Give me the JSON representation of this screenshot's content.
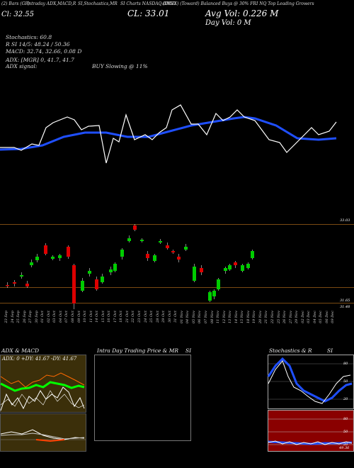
{
  "header": {
    "top_texts": [
      "(2) Bars (GF) ",
      "Intraday ADX,MACD,R",
      "SI,Stochastics,MR",
      "SI Charts NASDAQ:DMRI",
      "(DRVX) (Toward) Balanced Buys @ 30% FRI NQ Top Leading Growers"
    ],
    "price_line": "Cl: 32.55",
    "avg_line": "Avg Vol: 0.226 M",
    "day_vol": "Day Vol: 0 M",
    "close_big": "CL: 33.01"
  },
  "indicators": {
    "stochastics": "Stochastics: 60.8",
    "rsi": "R SI 14/5: 48.24 / 50.36",
    "macd": "MACD: 32.74, 32.66, 0.08 D",
    "adx": "ADX: [MGR] 0, 41.7, 41.7",
    "adx_signal": "ADX signal:",
    "buy_signal": "BUY Slowing @ 11%"
  },
  "price_axis": {
    "top_label": "33.03",
    "bottom_label": "31.65",
    "low_label": "31.48"
  },
  "dates": [
    "23 Sep",
    "24 Sep",
    "25 Sep",
    "26 Sep",
    "27 Sep",
    "30 Sep",
    "01 Oct",
    "02 Oct",
    "03 Oct",
    "04 Oct",
    "07 Oct",
    "08 Oct",
    "09 Oct",
    "10 Oct",
    "11 Oct",
    "14 Oct",
    "15 Oct",
    "16 Oct",
    "17 Oct",
    "18 Oct",
    "21 Oct",
    "22 Oct",
    "23 Oct",
    "24 Oct",
    "25 Oct",
    "28 Oct",
    "29 Oct",
    "30 Oct",
    "31 Oct",
    "01 Nov",
    "04 Nov",
    "05 Nov",
    "06 Nov",
    "07 Nov",
    "08 Nov",
    "11 Nov",
    "12 Nov",
    "13 Nov",
    "14 Nov",
    "15 Nov",
    "18 Nov",
    "19 Nov",
    "20 Nov",
    "21 Nov",
    "22 Nov",
    "25 Nov",
    "26 Nov",
    "27 Nov",
    "29 Nov",
    "02 Dec",
    "03 Dec",
    "04 Dec",
    "05 Dec",
    "06 Dec",
    "09 Dec"
  ],
  "panels": {
    "adx_title": "ADX  & MACD",
    "adx_values": "ADX: 0  +DY: 41.67  -DY: 41.67",
    "intraday_title": "Intra  Day Trading Price  & MR",
    "intraday_si": "SI",
    "stoch_title": "Stochastics & R",
    "stoch_si": "SI",
    "stoch_ticks": [
      "80",
      "50",
      "20"
    ],
    "rsi_ticks": [
      "80",
      "50",
      "20"
    ],
    "rsi_value": "49.36"
  },
  "colors": {
    "up": "#00cc00",
    "down": "#dd0000",
    "ma": "#1f4fff",
    "panel_olive": "#3b2f0a",
    "rsi_bg": "#8a0000"
  }
}
